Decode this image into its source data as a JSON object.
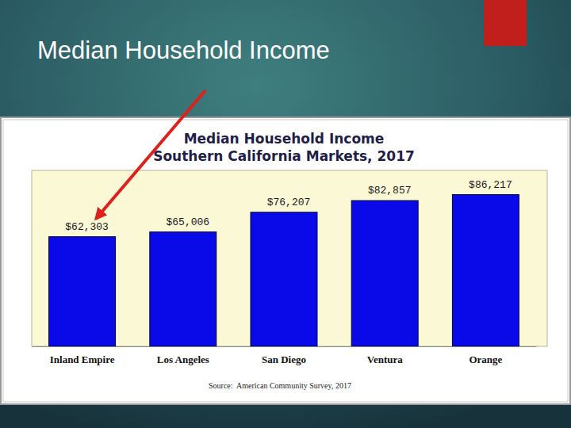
{
  "slide": {
    "title": "Median Household Income"
  },
  "chart_data": {
    "type": "bar",
    "title": "Median Household Income",
    "subtitle": "Southern California Markets, 2017",
    "categories": [
      "Inland Empire",
      "Los Angeles",
      "San Diego",
      "Ventura",
      "Orange"
    ],
    "values": [
      62303,
      65006,
      76207,
      82857,
      86217
    ],
    "value_labels": [
      "$62,303",
      "$65,006",
      "$76,207",
      "$82,857",
      "$86,217"
    ],
    "data_labels": true,
    "color": "#0a0ae8",
    "ylim": [
      0,
      100000
    ],
    "tick_labels": "x",
    "grid": false,
    "annotations": [
      "Source:  American Community Survey, 2017"
    ]
  }
}
